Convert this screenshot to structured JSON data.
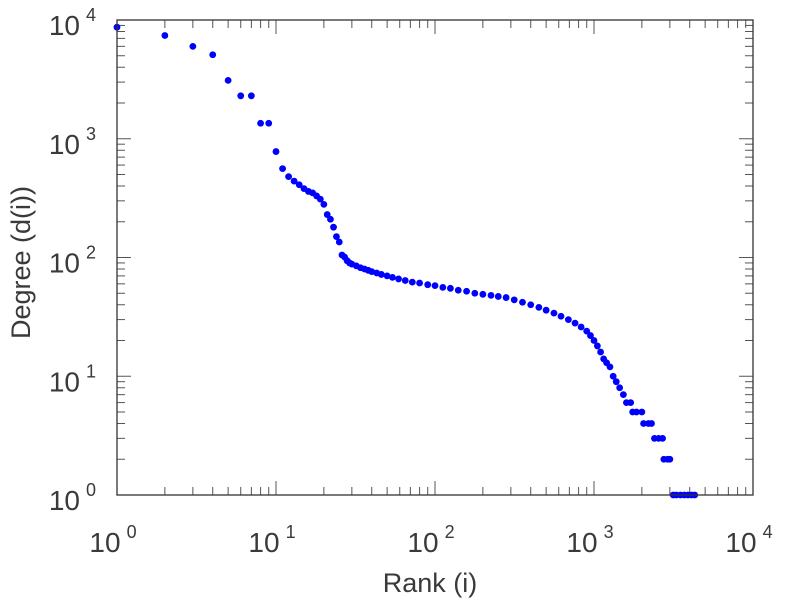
{
  "chart_data": {
    "type": "scatter",
    "title": "",
    "xlabel": "Rank (i)",
    "ylabel": "Degree (d(i))",
    "xscale": "log",
    "yscale": "log",
    "xlim": [
      1,
      10000
    ],
    "ylim": [
      1,
      10000
    ],
    "grid": false,
    "legend": "none",
    "x_ticks": [
      {
        "value": 1,
        "base": "10",
        "exp": "0"
      },
      {
        "value": 10,
        "base": "10",
        "exp": "1"
      },
      {
        "value": 100,
        "base": "10",
        "exp": "2"
      },
      {
        "value": 1000,
        "base": "10",
        "exp": "3"
      },
      {
        "value": 10000,
        "base": "10",
        "exp": "4"
      }
    ],
    "y_ticks": [
      {
        "value": 1,
        "base": "10",
        "exp": "0"
      },
      {
        "value": 10,
        "base": "10",
        "exp": "1"
      },
      {
        "value": 100,
        "base": "10",
        "exp": "2"
      },
      {
        "value": 1000,
        "base": "10",
        "exp": "3"
      },
      {
        "value": 10000,
        "base": "10",
        "exp": "4"
      }
    ],
    "marker_color": "#0000ff",
    "series": [
      {
        "points": [
          [
            1,
            8700
          ],
          [
            2,
            7400
          ],
          [
            3,
            6000
          ],
          [
            4,
            5100
          ],
          [
            5,
            3100
          ],
          [
            6,
            2300
          ],
          [
            7,
            2300
          ],
          [
            8,
            1350
          ],
          [
            9,
            1350
          ],
          [
            10,
            780
          ],
          [
            11,
            560
          ],
          [
            12,
            480
          ],
          [
            13,
            440
          ],
          [
            14,
            410
          ],
          [
            15,
            380
          ],
          [
            16,
            360
          ],
          [
            17,
            350
          ],
          [
            18,
            330
          ],
          [
            19,
            310
          ],
          [
            20,
            280
          ],
          [
            21,
            230
          ],
          [
            22,
            210
          ],
          [
            23,
            180
          ],
          [
            24,
            150
          ],
          [
            25,
            135
          ],
          [
            26,
            105
          ],
          [
            27,
            101
          ],
          [
            28,
            94
          ],
          [
            29,
            90
          ],
          [
            30,
            88
          ],
          [
            32,
            85
          ],
          [
            34,
            82
          ],
          [
            36,
            80
          ],
          [
            38,
            78
          ],
          [
            40,
            76
          ],
          [
            43,
            74
          ],
          [
            46,
            72
          ],
          [
            50,
            70
          ],
          [
            54,
            68
          ],
          [
            59,
            66
          ],
          [
            65,
            64
          ],
          [
            72,
            62
          ],
          [
            80,
            61
          ],
          [
            90,
            59
          ],
          [
            100,
            58
          ],
          [
            112,
            56
          ],
          [
            125,
            55
          ],
          [
            140,
            53
          ],
          [
            158,
            52
          ],
          [
            178,
            50
          ],
          [
            200,
            49
          ],
          [
            225,
            48
          ],
          [
            250,
            47
          ],
          [
            280,
            46
          ],
          [
            315,
            44
          ],
          [
            355,
            42
          ],
          [
            400,
            40
          ],
          [
            450,
            38
          ],
          [
            500,
            36
          ],
          [
            560,
            34
          ],
          [
            620,
            32
          ],
          [
            690,
            30
          ],
          [
            760,
            28
          ],
          [
            830,
            26
          ],
          [
            900,
            24
          ],
          [
            950,
            22
          ],
          [
            1000,
            20
          ],
          [
            1050,
            18
          ],
          [
            1100,
            16
          ],
          [
            1150,
            14
          ],
          [
            1200,
            13
          ],
          [
            1260,
            12
          ],
          [
            1320,
            10
          ],
          [
            1380,
            9
          ],
          [
            1450,
            8
          ],
          [
            1530,
            7
          ],
          [
            1600,
            6
          ],
          [
            1700,
            6
          ],
          [
            1750,
            5
          ],
          [
            1850,
            5
          ],
          [
            2000,
            5
          ],
          [
            2050,
            4
          ],
          [
            2200,
            4
          ],
          [
            2300,
            4
          ],
          [
            2400,
            3
          ],
          [
            2550,
            3
          ],
          [
            2700,
            3
          ],
          [
            2750,
            2
          ],
          [
            2900,
            2
          ],
          [
            3000,
            2
          ],
          [
            3150,
            1
          ],
          [
            3300,
            1
          ],
          [
            3500,
            1
          ],
          [
            3700,
            1
          ],
          [
            3900,
            1
          ],
          [
            4100,
            1
          ],
          [
            4300,
            1
          ]
        ]
      }
    ]
  }
}
